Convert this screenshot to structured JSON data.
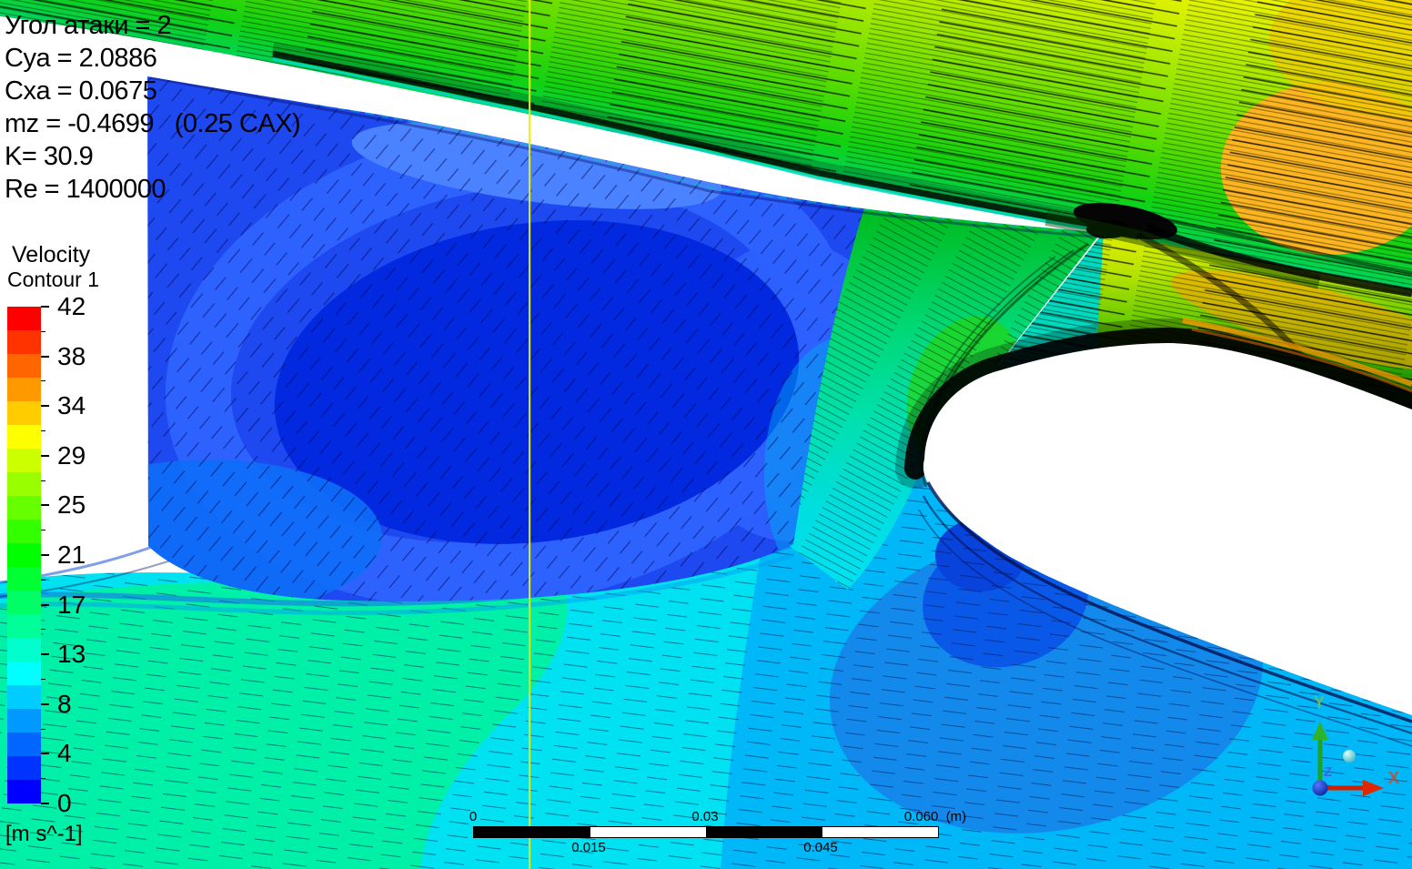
{
  "header": {
    "lines": [
      "Угол атаки = 2",
      "Cya = 2.0886",
      "Cxa = 0.0675",
      "mz = -0.4699   (0.25 CAX)",
      "K= 30.9",
      "Re = 1400000"
    ]
  },
  "legend": {
    "title": "Velocity",
    "subtitle": "Contour 1",
    "unit": "[m s^-1]",
    "tick_labels": [
      "42",
      "38",
      "34",
      "29",
      "25",
      "21",
      "17",
      "13",
      "8",
      "4",
      "0"
    ],
    "colormap_top_color": "#ff0000",
    "colormap_bottom_color": "#0000ff"
  },
  "scale_bar": {
    "top_labels": [
      "0",
      "0.03",
      "0.060  (m)"
    ],
    "bottom_labels": [
      "0.015",
      "0.045"
    ]
  },
  "triad": {
    "x": "X",
    "y": "Y",
    "z": "Z",
    "x_color": "#c03010",
    "y_color": "#22a020",
    "z_color": "#3050e0"
  },
  "chart_data": {
    "type": "heatmap",
    "title": "Velocity Contour 1",
    "units": "m s^-1",
    "levels": [
      0,
      4,
      8,
      13,
      17,
      21,
      25,
      29,
      34,
      38,
      42
    ],
    "colormap": "rainbow blue(0) to red(42)",
    "ruler_m": [
      0,
      0.015,
      0.03,
      0.045,
      0.06
    ],
    "flow_parameters": {
      "angle_of_attack_deg": 2,
      "Cya": 2.0886,
      "Cxa": 0.0675,
      "mz": -0.4699,
      "mz_reference": "0.25 CAX",
      "K": 30.9,
      "Re": 1400000
    },
    "scene": "2D velocity contours with streamline texture around a wing trailing edge and slotted flap; blue recirculation cove under the wing, fast yellow/orange flow above, cyan wake below"
  }
}
